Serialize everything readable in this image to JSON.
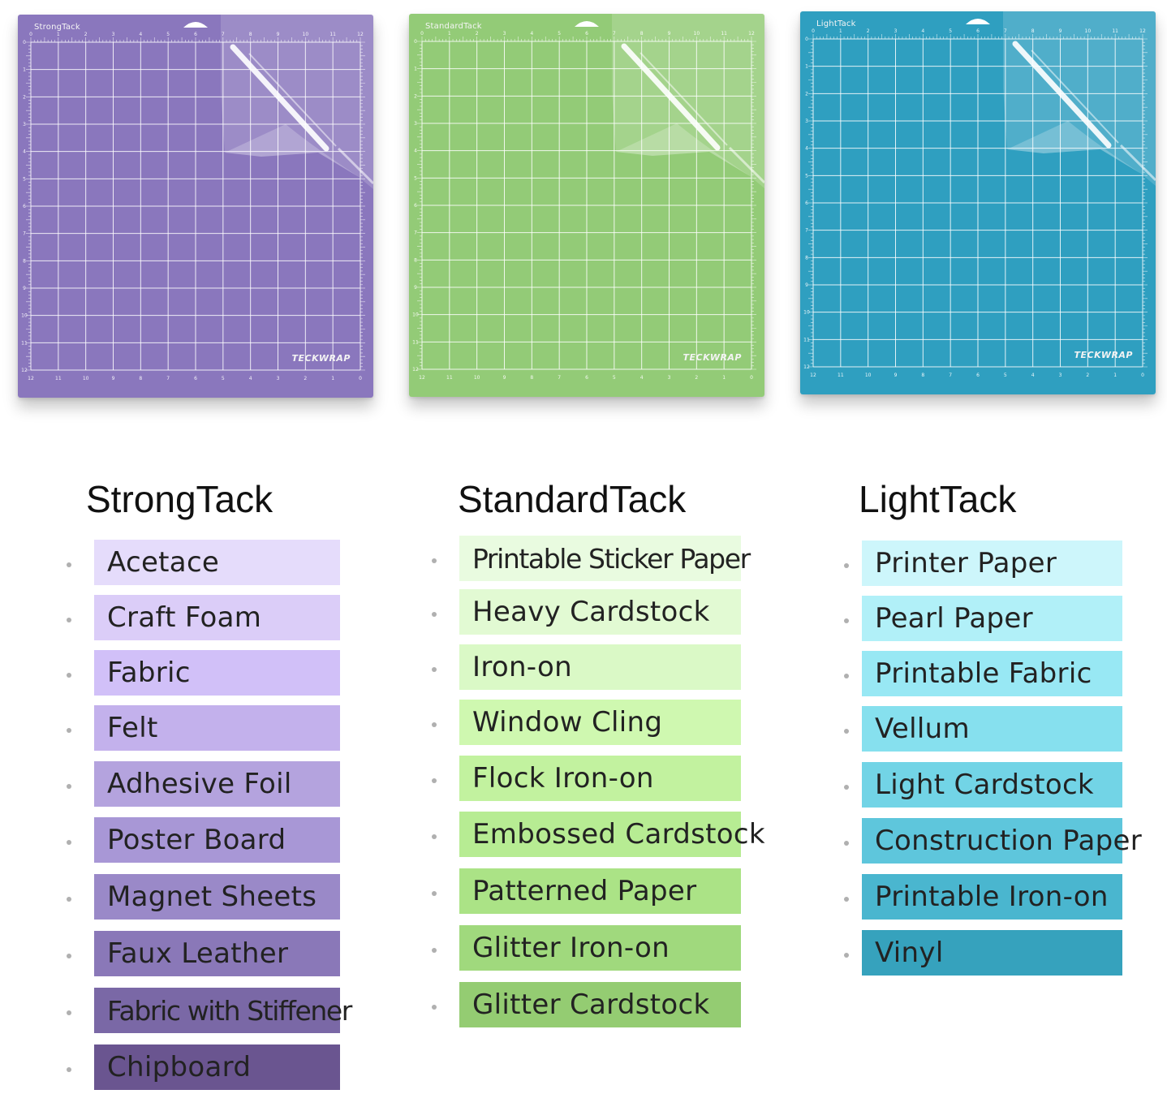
{
  "mats": [
    {
      "label": "StrongTack",
      "brand": "TECKWRAP",
      "color": "#8a77bd"
    },
    {
      "label": "StandardTack",
      "brand": "TECKWRAP",
      "color": "#93cb77"
    },
    {
      "label": "LightTack",
      "brand": "TECKWRAP",
      "color": "#2f9fc0"
    }
  ],
  "ruler_numbers": [
    "0",
    "1",
    "2",
    "3",
    "4",
    "5",
    "6",
    "7",
    "8",
    "9",
    "10",
    "11",
    "12"
  ],
  "columns": [
    {
      "title": "StrongTack",
      "items": [
        {
          "label": "Acetace",
          "color": "#e5dcfb"
        },
        {
          "label": "Craft Foam",
          "color": "#dbcdf8"
        },
        {
          "label": "Fabric",
          "color": "#d1c0f8"
        },
        {
          "label": "Felt",
          "color": "#c3b1ec"
        },
        {
          "label": "Adhesive Foil",
          "color": "#b4a3de"
        },
        {
          "label": "Poster Board",
          "color": "#a897d6"
        },
        {
          "label": "Magnet Sheets",
          "color": "#9a89c8"
        },
        {
          "label": "Faux Leather",
          "color": "#8a78b8"
        },
        {
          "label": "Fabric with Stiffener",
          "color": "#7a68a6"
        },
        {
          "label": "Chipboard",
          "color": "#6a5590"
        }
      ]
    },
    {
      "title": "StandardTack",
      "items": [
        {
          "label": "Printable Sticker Paper",
          "color": "#e9fbe0"
        },
        {
          "label": "Heavy Cardstock",
          "color": "#e2fad3"
        },
        {
          "label": "Iron-on",
          "color": "#daf9c6"
        },
        {
          "label": "Window Cling",
          "color": "#cff8b0"
        },
        {
          "label": "Flock Iron-on",
          "color": "#c2f29f"
        },
        {
          "label": "Embossed Cardstock",
          "color": "#b7ec93"
        },
        {
          "label": "Patterned Paper",
          "color": "#abe386"
        },
        {
          "label": "Glitter Iron-on",
          "color": "#a0d97d"
        },
        {
          "label": "Glitter Cardstock",
          "color": "#94cc72"
        }
      ]
    },
    {
      "title": "LightTack",
      "items": [
        {
          "label": "Printer Paper",
          "color": "#cdf6fb"
        },
        {
          "label": "Pearl Paper",
          "color": "#b1f0f8"
        },
        {
          "label": "Printable Fabric",
          "color": "#98e8f4"
        },
        {
          "label": "Vellum",
          "color": "#86e0ee"
        },
        {
          "label": "Light Cardstock",
          "color": "#72d4e6"
        },
        {
          "label": "Construction Paper",
          "color": "#5ec6dc"
        },
        {
          "label": "Printable Iron-on",
          "color": "#4ab6cf"
        },
        {
          "label": "Vinyl",
          "color": "#36a2bd"
        }
      ]
    }
  ]
}
